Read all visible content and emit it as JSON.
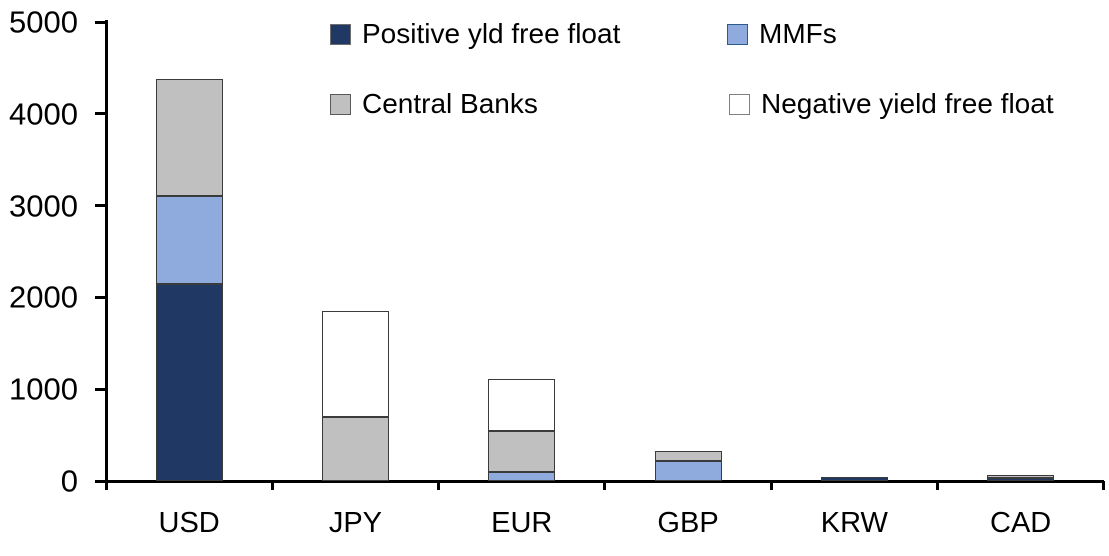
{
  "chart_data": {
    "type": "bar",
    "stacked": true,
    "title": "",
    "xlabel": "",
    "ylabel": "",
    "grid": false,
    "legend_position": "top-inside",
    "categories": [
      "USD",
      "JPY",
      "EUR",
      "GBP",
      "KRW",
      "CAD"
    ],
    "series": [
      {
        "name": "Positive yld free float",
        "fill": "#1f3864",
        "swatch_border": "#6e6e6e",
        "values": [
          2150,
          0,
          0,
          0,
          40,
          30
        ]
      },
      {
        "name": "MMFs",
        "fill": "#8faadc",
        "swatch_border": "#2e5b8f",
        "values": [
          950,
          0,
          100,
          220,
          0,
          0
        ]
      },
      {
        "name": "Central Banks",
        "fill": "#c0c0c0",
        "swatch_border": "#595959",
        "values": [
          1275,
          700,
          440,
          110,
          0,
          40
        ]
      },
      {
        "name": "Negative yield free float",
        "fill": "#ffffff",
        "swatch_border": "#808080",
        "values": [
          0,
          1150,
          570,
          0,
          0,
          0
        ]
      }
    ],
    "totals": {
      "USD": 4375,
      "JPY": 1850,
      "EUR": 1110,
      "GBP": 330,
      "KRW": 40,
      "CAD": 70
    },
    "ylim": [
      0,
      5000
    ],
    "yticks": [
      0,
      1000,
      2000,
      3000,
      4000,
      5000
    ]
  },
  "colors": {
    "axis": "#000000",
    "bar_border": "#3b3b3b",
    "background": "#ffffff",
    "text": "#000000"
  }
}
